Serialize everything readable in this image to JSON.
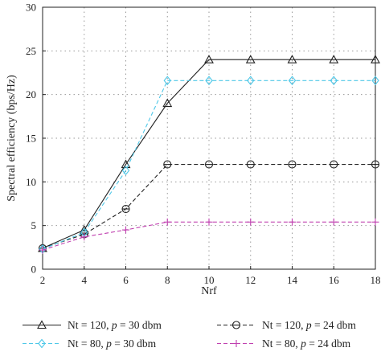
{
  "chart_data": {
    "type": "line",
    "xlabel": "Nrf",
    "ylabel": "Spectral efficiency (bps/Hz)",
    "x": [
      2,
      4,
      6,
      8,
      10,
      12,
      14,
      16,
      18
    ],
    "xlim": [
      2,
      18
    ],
    "ylim": [
      0,
      30
    ],
    "xticks": [
      2,
      4,
      6,
      8,
      10,
      12,
      14,
      16,
      18
    ],
    "yticks": [
      0,
      5,
      10,
      15,
      20,
      25,
      30
    ],
    "grid": true,
    "legend_position": "bottom",
    "series": [
      {
        "name": "Nt = 120, p = 30 dbm",
        "label_parts": [
          "Nt = 120, ",
          "p",
          " = 30 dbm"
        ],
        "color": "#222222",
        "dash": "solid",
        "marker": "triangle",
        "x": [
          2,
          4,
          6,
          8,
          10,
          12,
          14,
          16,
          18
        ],
        "values": [
          2.4,
          4.5,
          12.0,
          19.0,
          24.0,
          24.0,
          24.0,
          24.0,
          24.0
        ]
      },
      {
        "name": "Nt = 120, p = 24 dbm",
        "label_parts": [
          "Nt = 120, ",
          "p",
          " = 24 dbm"
        ],
        "color": "#222222",
        "dash": "dashed",
        "marker": "circle-bar",
        "x": [
          2,
          4,
          6,
          8,
          10,
          12,
          14,
          16,
          18
        ],
        "values": [
          2.4,
          4.0,
          6.9,
          12.0,
          12.0,
          12.0,
          12.0,
          12.0,
          12.0
        ]
      },
      {
        "name": "Nt = 80, p = 30 dbm",
        "label_parts": [
          "Nt = 80, ",
          "p",
          " = 30 dbm"
        ],
        "color": "#4fc8e8",
        "dash": "dashed",
        "marker": "diamond",
        "x": [
          2,
          4,
          6,
          8,
          10,
          12,
          14,
          16,
          18
        ],
        "values": [
          2.3,
          4.2,
          11.3,
          21.6,
          21.6,
          21.6,
          21.6,
          21.6,
          21.6
        ]
      },
      {
        "name": "Nt = 80, p = 24 dbm",
        "label_parts": [
          "Nt = 80, ",
          "p",
          " = 24 dbm"
        ],
        "color": "#c040b0",
        "dash": "dashed",
        "marker": "plus",
        "x": [
          2,
          4,
          6,
          8,
          10,
          12,
          14,
          16,
          18
        ],
        "values": [
          2.2,
          3.7,
          4.5,
          5.4,
          5.4,
          5.4,
          5.4,
          5.4,
          5.4
        ]
      }
    ]
  }
}
